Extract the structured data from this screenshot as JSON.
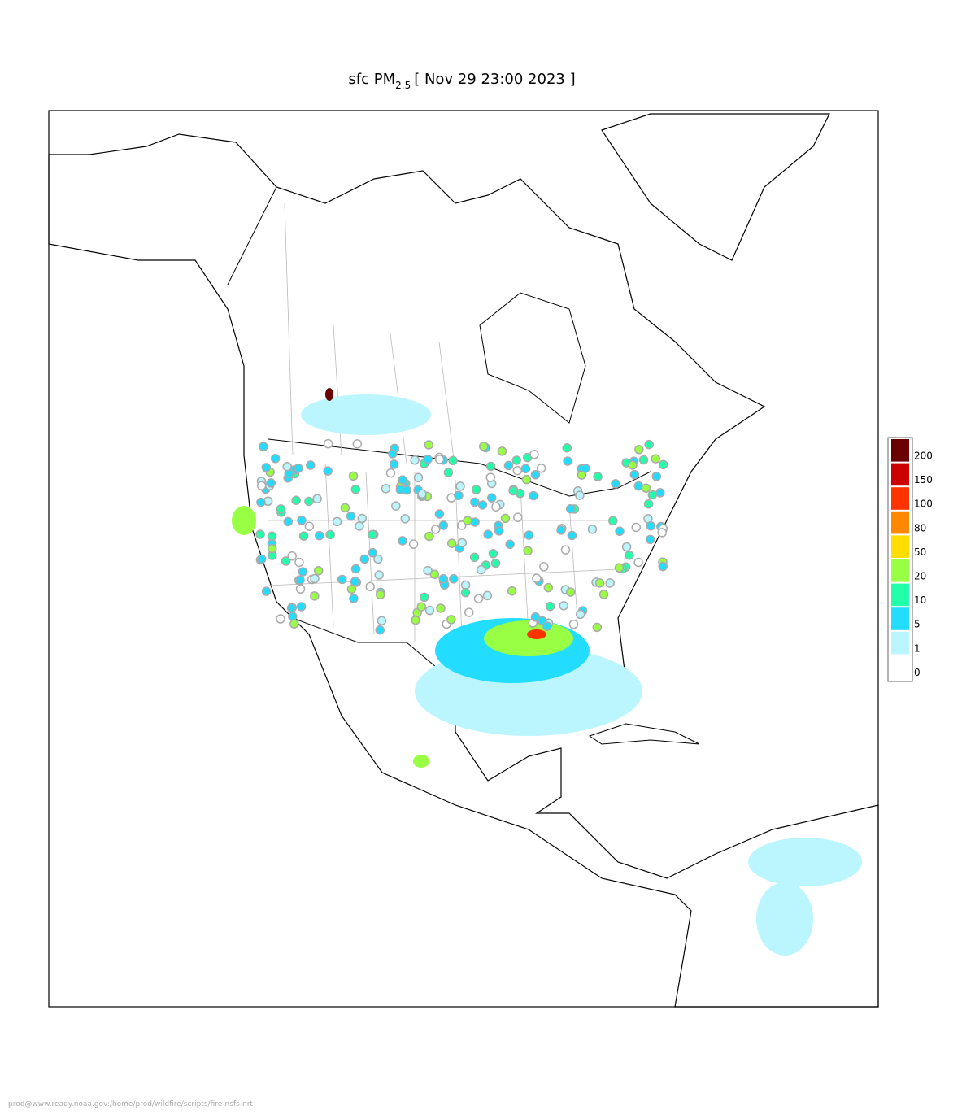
{
  "title": {
    "main": "sfc PM",
    "subscript": "2.5",
    "date": "[ Nov 29 23:00 2023 ]"
  },
  "legend": {
    "levels": [
      {
        "value": 200,
        "color": "#6b0000"
      },
      {
        "value": 150,
        "color": "#cc0000"
      },
      {
        "value": 100,
        "color": "#ff3300"
      },
      {
        "value": 80,
        "color": "#ff8800"
      },
      {
        "value": 50,
        "color": "#ffdd00"
      },
      {
        "value": 20,
        "color": "#99ff44"
      },
      {
        "value": 10,
        "color": "#22ffaa"
      },
      {
        "value": 5,
        "color": "#22ddff"
      },
      {
        "value": 1,
        "color": "#bbf6ff"
      },
      {
        "value": 0,
        "color": "#ffffff"
      }
    ]
  },
  "footer": "prod@www.ready.noaa.gov:/home/prod/wildfire/scripts/fire-nsfs-nrt"
}
